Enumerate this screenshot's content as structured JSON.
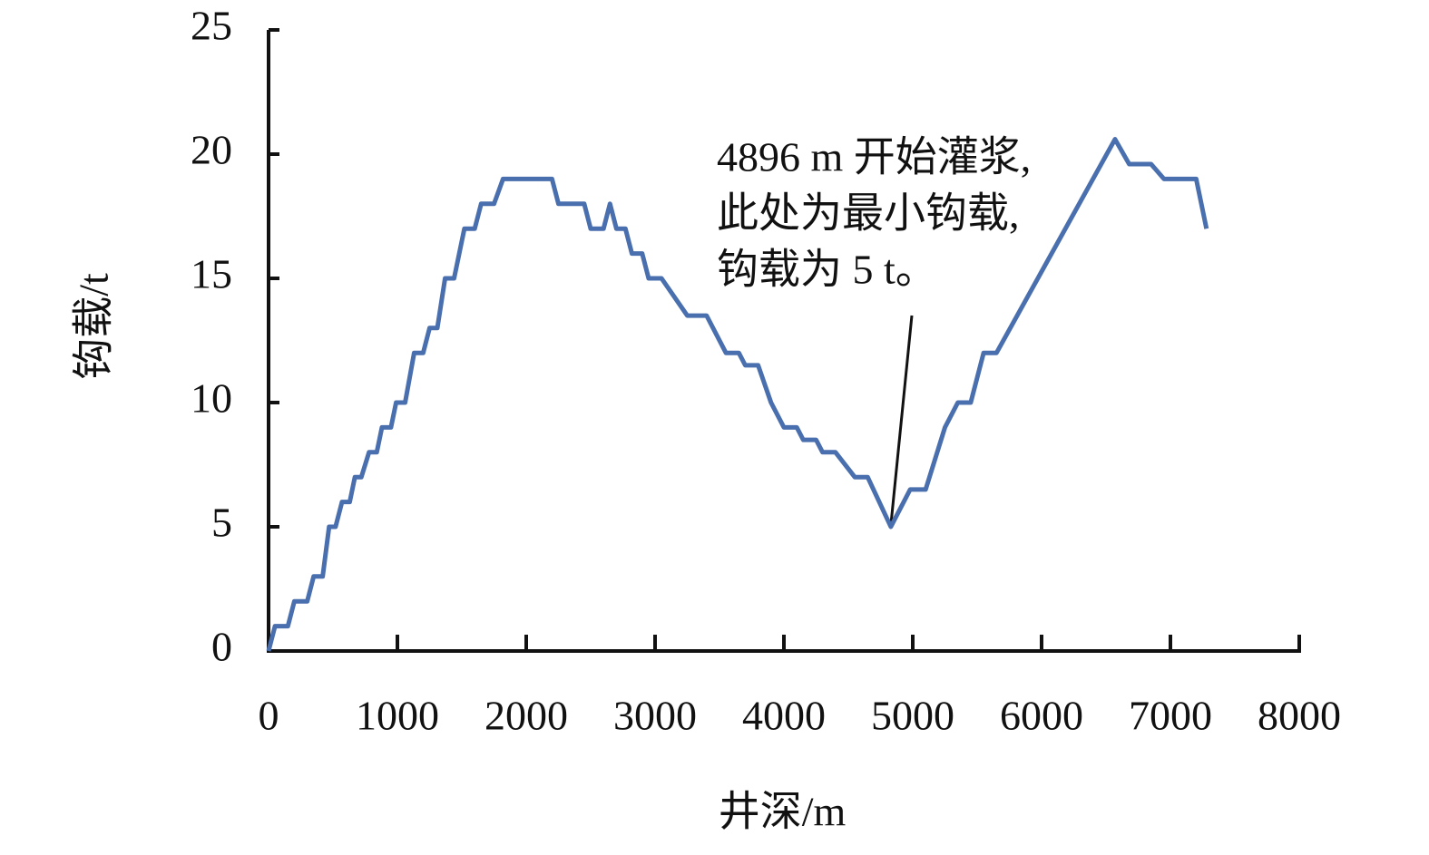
{
  "chart_data": {
    "type": "line",
    "x_label": "井深/m",
    "y_label": "钩载/t",
    "annotation": [
      "4896 m 开始灌浆,",
      "此处为最小钩载,",
      "钩载为 5 t。"
    ],
    "x": [
      0,
      50,
      150,
      200,
      300,
      350,
      420,
      470,
      520,
      570,
      630,
      670,
      720,
      780,
      840,
      880,
      950,
      990,
      1060,
      1130,
      1200,
      1250,
      1310,
      1370,
      1440,
      1520,
      1600,
      1650,
      1750,
      1820,
      2200,
      2250,
      2450,
      2500,
      2600,
      2650,
      2700,
      2770,
      2820,
      2900,
      2950,
      3050,
      3250,
      3400,
      3550,
      3650,
      3700,
      3800,
      3900,
      4000,
      4100,
      4150,
      4250,
      4300,
      4400,
      4550,
      4650,
      4830,
      4980,
      5100,
      5250,
      5350,
      5450,
      5550,
      5650,
      6570,
      6680,
      6850,
      6950,
      7200,
      7280
    ],
    "series": [
      {
        "color": "#4a6fae",
        "values": [
          0,
          1,
          1,
          2,
          2,
          3,
          3,
          5,
          5,
          6,
          6,
          7,
          7,
          8,
          8,
          9,
          9,
          10,
          10,
          12,
          12,
          13,
          13,
          15,
          15,
          17,
          17,
          18,
          18,
          19,
          19,
          18,
          18,
          17,
          17,
          18,
          17,
          17,
          16,
          16,
          15,
          15,
          13.5,
          13.5,
          12,
          12,
          11.5,
          11.5,
          10,
          9,
          9,
          8.5,
          8.5,
          8,
          8,
          7,
          7,
          5,
          6.5,
          6.5,
          9,
          10,
          10,
          12,
          12,
          20.6,
          19.6,
          19.6,
          19,
          19,
          17
        ]
      }
    ],
    "xlim": [
      0,
      8000
    ],
    "xticks": [
      0,
      1000,
      2000,
      3000,
      4000,
      5000,
      6000,
      7000,
      8000
    ],
    "ylim": [
      0,
      25
    ],
    "yticks": [
      0,
      5,
      10,
      15,
      20,
      25
    ]
  }
}
